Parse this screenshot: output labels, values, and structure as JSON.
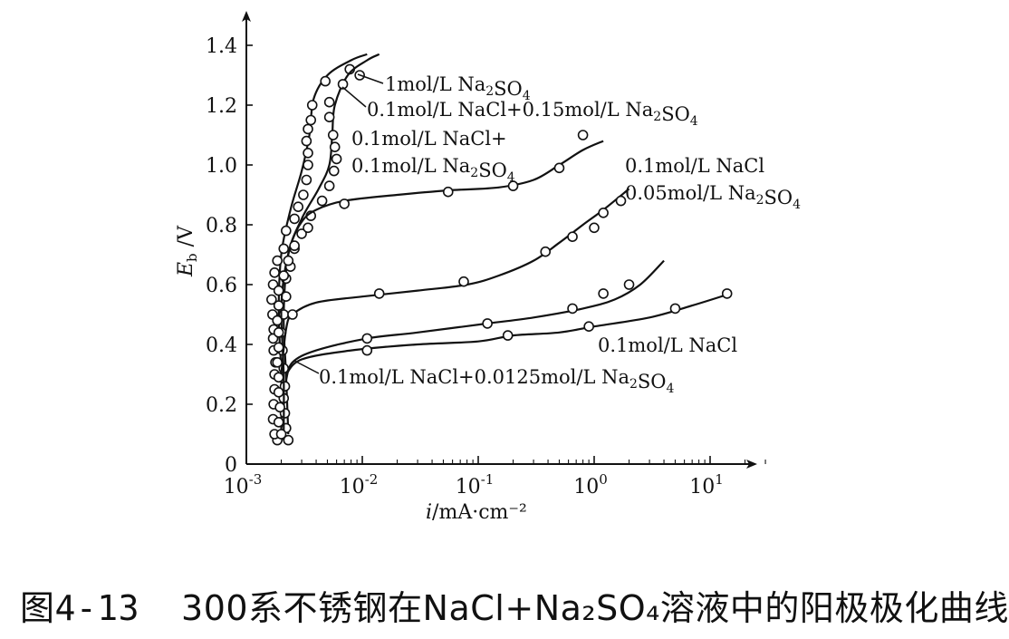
{
  "chart_data": {
    "type": "line",
    "title": "",
    "xlabel": {
      "symbol": "i",
      "unit": "/mA·cm⁻²"
    },
    "ylabel": {
      "symbol": "E",
      "subscript": "b",
      "unit": "/V"
    },
    "x_scale": "log",
    "xlim": [
      0.001,
      30
    ],
    "ylim": [
      0,
      1.4
    ],
    "x_ticks": [
      {
        "value": 0.001,
        "base": "10",
        "exp": "-3"
      },
      {
        "value": 0.01,
        "base": "10",
        "exp": "-2"
      },
      {
        "value": 0.1,
        "base": "10",
        "exp": "-1"
      },
      {
        "value": 1,
        "base": "10",
        "exp": "0"
      },
      {
        "value": 10,
        "base": "10",
        "exp": "1"
      }
    ],
    "y_ticks": [
      0,
      0.2,
      0.4,
      0.6,
      0.8,
      1.0,
      1.2,
      1.4
    ],
    "y_tick_labels": [
      "0",
      "0.2",
      "0.4",
      "0.6",
      "0.8",
      "1.0",
      "1.2",
      "1.4"
    ],
    "grid": false,
    "series": [
      {
        "name": "1mol/L Na2SO4",
        "label_parts": [
          [
            "t",
            "1mol/L  Na"
          ],
          [
            "s",
            "2"
          ],
          [
            "t",
            "SO"
          ],
          [
            "s",
            "4"
          ]
        ],
        "curve": [
          [
            0.002,
            0.1
          ],
          [
            0.002,
            0.3
          ],
          [
            0.0019,
            0.5
          ],
          [
            0.002,
            0.7
          ],
          [
            0.0024,
            0.85
          ],
          [
            0.003,
            0.98
          ],
          [
            0.0035,
            1.1
          ],
          [
            0.0038,
            1.22
          ],
          [
            0.005,
            1.3
          ],
          [
            0.008,
            1.35
          ],
          [
            0.011,
            1.37
          ]
        ],
        "markers": [
          [
            0.00185,
            0.08
          ],
          [
            0.00175,
            0.1
          ],
          [
            0.0017,
            0.15
          ],
          [
            0.00172,
            0.2
          ],
          [
            0.00175,
            0.25
          ],
          [
            0.00175,
            0.3
          ],
          [
            0.00178,
            0.34
          ],
          [
            0.00172,
            0.38
          ],
          [
            0.0017,
            0.42
          ],
          [
            0.00172,
            0.45
          ],
          [
            0.00168,
            0.5
          ],
          [
            0.00165,
            0.55
          ],
          [
            0.0017,
            0.6
          ],
          [
            0.00175,
            0.64
          ],
          [
            0.00185,
            0.68
          ],
          [
            0.0021,
            0.72
          ],
          [
            0.0022,
            0.78
          ],
          [
            0.0026,
            0.82
          ],
          [
            0.0028,
            0.86
          ],
          [
            0.0031,
            0.9
          ],
          [
            0.0033,
            0.95
          ],
          [
            0.0034,
            1.0
          ],
          [
            0.0034,
            1.04
          ],
          [
            0.0033,
            1.08
          ],
          [
            0.0034,
            1.12
          ],
          [
            0.0036,
            1.15
          ],
          [
            0.0037,
            1.2
          ],
          [
            0.0048,
            1.28
          ],
          [
            0.0078,
            1.32
          ]
        ],
        "label_anchor": [
          0.0085,
          1.31
        ]
      },
      {
        "name": "0.1mol/L NaCl+0.15mol/L Na2SO4",
        "label_parts": [
          [
            "t",
            "0.1mol/L  NaCl+0.15mol/L  Na"
          ],
          [
            "s",
            "2"
          ],
          [
            "t",
            "SO"
          ],
          [
            "s",
            "4"
          ]
        ],
        "curve": [
          [
            0.0023,
            0.1
          ],
          [
            0.0022,
            0.3
          ],
          [
            0.0021,
            0.5
          ],
          [
            0.0023,
            0.7
          ],
          [
            0.003,
            0.82
          ],
          [
            0.0042,
            0.92
          ],
          [
            0.0052,
            1.0
          ],
          [
            0.0055,
            1.1
          ],
          [
            0.0058,
            1.2
          ],
          [
            0.0075,
            1.3
          ],
          [
            0.011,
            1.35
          ],
          [
            0.014,
            1.37
          ]
        ],
        "markers": [
          [
            0.0023,
            0.08
          ],
          [
            0.0022,
            0.12
          ],
          [
            0.00215,
            0.17
          ],
          [
            0.0021,
            0.22
          ],
          [
            0.00215,
            0.26
          ],
          [
            0.0021,
            0.32
          ],
          [
            0.00205,
            0.38
          ],
          [
            0.002,
            0.44
          ],
          [
            0.0021,
            0.5
          ],
          [
            0.0022,
            0.56
          ],
          [
            0.0022,
            0.62
          ],
          [
            0.0024,
            0.66
          ],
          [
            0.0026,
            0.72
          ],
          [
            0.003,
            0.77
          ],
          [
            0.0036,
            0.83
          ],
          [
            0.0045,
            0.88
          ],
          [
            0.0052,
            0.93
          ],
          [
            0.0057,
            0.98
          ],
          [
            0.006,
            1.02
          ],
          [
            0.0058,
            1.06
          ],
          [
            0.0056,
            1.1
          ],
          [
            0.0052,
            1.16
          ],
          [
            0.0052,
            1.21
          ],
          [
            0.0068,
            1.27
          ],
          [
            0.0095,
            1.3
          ]
        ],
        "label_anchor": [
          0.0085,
          1.28
        ]
      },
      {
        "name": "0.1mol/L NaCl+ 0.1mol/L Na2SO4",
        "label_lines": [
          [
            [
              "t",
              "0.1mol/L  NaCl+"
            ]
          ],
          [
            [
              "t",
              "0.1mol/L  Na"
            ],
            [
              "s",
              "2"
            ],
            [
              "t",
              "SO"
            ],
            [
              "s",
              "4"
            ]
          ]
        ],
        "curve": [
          [
            0.0021,
            0.08
          ],
          [
            0.0021,
            0.3
          ],
          [
            0.002,
            0.5
          ],
          [
            0.0021,
            0.62
          ],
          [
            0.0024,
            0.73
          ],
          [
            0.003,
            0.81
          ],
          [
            0.004,
            0.85
          ],
          [
            0.007,
            0.88
          ],
          [
            0.02,
            0.9
          ],
          [
            0.055,
            0.915
          ],
          [
            0.15,
            0.925
          ],
          [
            0.3,
            0.95
          ],
          [
            0.5,
            1.0
          ],
          [
            0.8,
            1.05
          ],
          [
            1.2,
            1.08
          ]
        ],
        "markers": [
          [
            0.002,
            0.1
          ],
          [
            0.0019,
            0.14
          ],
          [
            0.00195,
            0.19
          ],
          [
            0.0019,
            0.24
          ],
          [
            0.0019,
            0.29
          ],
          [
            0.00185,
            0.34
          ],
          [
            0.0019,
            0.39
          ],
          [
            0.0019,
            0.44
          ],
          [
            0.00185,
            0.48
          ],
          [
            0.0019,
            0.53
          ],
          [
            0.0019,
            0.58
          ],
          [
            0.0021,
            0.63
          ],
          [
            0.0023,
            0.68
          ],
          [
            0.0026,
            0.73
          ],
          [
            0.0034,
            0.79
          ],
          [
            0.007,
            0.87
          ],
          [
            0.055,
            0.91
          ],
          [
            0.2,
            0.93
          ],
          [
            0.5,
            0.99
          ],
          [
            0.8,
            1.1
          ]
        ],
        "label_anchor": [
          0.0045,
          1.05
        ]
      },
      {
        "name": "0.1mol/L NaCl 0.05mol/L Na2SO4",
        "label_lines": [
          [
            [
              "t",
              "0.1mol/L  NaCl"
            ]
          ],
          [
            [
              "t",
              "0.05mol/L  Na"
            ],
            [
              "s",
              "2"
            ],
            [
              "t",
              "SO"
            ],
            [
              "s",
              "4"
            ]
          ]
        ],
        "curve": [
          [
            0.002,
            0.3
          ],
          [
            0.0022,
            0.45
          ],
          [
            0.0025,
            0.5
          ],
          [
            0.004,
            0.54
          ],
          [
            0.01,
            0.56
          ],
          [
            0.03,
            0.58
          ],
          [
            0.08,
            0.6
          ],
          [
            0.15,
            0.63
          ],
          [
            0.3,
            0.68
          ],
          [
            0.5,
            0.74
          ],
          [
            0.8,
            0.8
          ],
          [
            1.2,
            0.85
          ],
          [
            2.0,
            0.92
          ]
        ],
        "markers": [
          [
            0.0025,
            0.5
          ],
          [
            0.014,
            0.57
          ],
          [
            0.075,
            0.61
          ],
          [
            0.38,
            0.71
          ],
          [
            0.65,
            0.76
          ],
          [
            1.0,
            0.79
          ],
          [
            1.2,
            0.84
          ],
          [
            1.7,
            0.88
          ]
        ],
        "label_anchor": [
          2.2,
          0.96
        ]
      },
      {
        "name": "0.1mol/L NaCl",
        "label_parts": [
          [
            "t",
            "0.1mol/L  NaCl"
          ]
        ],
        "curve": [
          [
            0.0022,
            0.28
          ],
          [
            0.0025,
            0.34
          ],
          [
            0.004,
            0.38
          ],
          [
            0.011,
            0.42
          ],
          [
            0.03,
            0.44
          ],
          [
            0.12,
            0.47
          ],
          [
            0.3,
            0.49
          ],
          [
            0.8,
            0.52
          ],
          [
            1.5,
            0.55
          ],
          [
            2.5,
            0.6
          ],
          [
            4.0,
            0.68
          ]
        ],
        "markers": [
          [
            0.011,
            0.42
          ],
          [
            0.12,
            0.47
          ],
          [
            0.65,
            0.52
          ],
          [
            1.2,
            0.57
          ],
          [
            2.0,
            0.6
          ]
        ],
        "label_anchor": [
          1.6,
          0.38
        ]
      },
      {
        "name": "0.1mol/L NaCl+0.0125mol/L Na2SO4",
        "label_parts": [
          [
            "t",
            "0.1mol/L  NaCl+0.0125mol/L  Na"
          ],
          [
            "s",
            "2"
          ],
          [
            "t",
            "SO"
          ],
          [
            "s",
            "4"
          ]
        ],
        "curve": [
          [
            0.0022,
            0.3
          ],
          [
            0.003,
            0.35
          ],
          [
            0.008,
            0.38
          ],
          [
            0.03,
            0.4
          ],
          [
            0.1,
            0.41
          ],
          [
            0.2,
            0.43
          ],
          [
            0.5,
            0.44
          ],
          [
            1.0,
            0.46
          ],
          [
            3.0,
            0.49
          ],
          [
            7.0,
            0.53
          ],
          [
            15.0,
            0.57
          ]
        ],
        "markers": [
          [
            0.011,
            0.38
          ],
          [
            0.18,
            0.43
          ],
          [
            0.9,
            0.46
          ],
          [
            5.0,
            0.52
          ],
          [
            14.0,
            0.57
          ]
        ],
        "label_anchor": [
          0.0055,
          0.3
        ]
      }
    ]
  },
  "caption": {
    "number": "图4-13",
    "text": "300系不锈钢在NaCl+Na₂SO₄溶液中的阳极极化曲线"
  }
}
